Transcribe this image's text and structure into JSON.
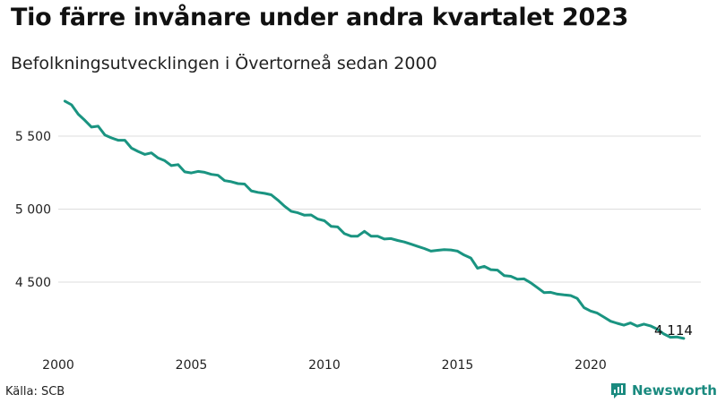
{
  "title": "Tio färre invånare under andra kvartalet 2023",
  "subtitle": "Befolkningsutvecklingen i Övertorneå sedan 2000",
  "source": "Källa: SCB",
  "brand": "Newsworthy",
  "colors": {
    "line": "#1a9481",
    "grid": "#dddddd",
    "brand": "#1a8a7f"
  },
  "chart_data": {
    "type": "line",
    "title": "Tio färre invånare under andra kvartalet 2023",
    "subtitle": "Befolkningsutvecklingen i Övertorneå sedan 2000",
    "xlabel": "",
    "ylabel": "",
    "xlim": [
      2000,
      2024
    ],
    "ylim": [
      4150,
      5800
    ],
    "x_ticks": [
      2000,
      2005,
      2010,
      2015,
      2020
    ],
    "x_tick_labels": [
      "2000",
      "2005",
      "2010",
      "2015",
      "2020"
    ],
    "y_ticks": [
      4500,
      5000,
      5500
    ],
    "y_tick_labels": [
      "4 500",
      "5 000",
      "5 500"
    ],
    "grid": true,
    "end_label": "4 114",
    "series": [
      {
        "values": [
          [
            2000.25,
            5740
          ],
          [
            2000.5,
            5715
          ],
          [
            2000.75,
            5650
          ],
          [
            2001.0,
            5608
          ],
          [
            2001.25,
            5562
          ],
          [
            2001.5,
            5568
          ],
          [
            2001.75,
            5508
          ],
          [
            2002.0,
            5488
          ],
          [
            2002.25,
            5472
          ],
          [
            2002.5,
            5472
          ],
          [
            2002.75,
            5418
          ],
          [
            2003.0,
            5395
          ],
          [
            2003.25,
            5375
          ],
          [
            2003.5,
            5385
          ],
          [
            2003.75,
            5350
          ],
          [
            2004.0,
            5332
          ],
          [
            2004.25,
            5298
          ],
          [
            2004.5,
            5305
          ],
          [
            2004.75,
            5255
          ],
          [
            2005.0,
            5248
          ],
          [
            2005.25,
            5258
          ],
          [
            2005.5,
            5252
          ],
          [
            2005.75,
            5238
          ],
          [
            2006.0,
            5232
          ],
          [
            2006.25,
            5195
          ],
          [
            2006.5,
            5188
          ],
          [
            2006.75,
            5175
          ],
          [
            2007.0,
            5172
          ],
          [
            2007.25,
            5125
          ],
          [
            2007.5,
            5115
          ],
          [
            2007.75,
            5108
          ],
          [
            2008.0,
            5098
          ],
          [
            2008.25,
            5062
          ],
          [
            2008.5,
            5020
          ],
          [
            2008.75,
            4985
          ],
          [
            2009.0,
            4975
          ],
          [
            2009.25,
            4958
          ],
          [
            2009.5,
            4960
          ],
          [
            2009.75,
            4932
          ],
          [
            2010.0,
            4920
          ],
          [
            2010.25,
            4882
          ],
          [
            2010.5,
            4878
          ],
          [
            2010.75,
            4832
          ],
          [
            2011.0,
            4815
          ],
          [
            2011.25,
            4815
          ],
          [
            2011.5,
            4848
          ],
          [
            2011.75,
            4815
          ],
          [
            2012.0,
            4815
          ],
          [
            2012.25,
            4795
          ],
          [
            2012.5,
            4798
          ],
          [
            2012.75,
            4785
          ],
          [
            2013.0,
            4775
          ],
          [
            2013.25,
            4760
          ],
          [
            2013.5,
            4745
          ],
          [
            2013.75,
            4730
          ],
          [
            2014.0,
            4712
          ],
          [
            2014.25,
            4718
          ],
          [
            2014.5,
            4722
          ],
          [
            2014.75,
            4720
          ],
          [
            2015.0,
            4712
          ],
          [
            2015.25,
            4685
          ],
          [
            2015.5,
            4665
          ],
          [
            2015.75,
            4595
          ],
          [
            2016.0,
            4608
          ],
          [
            2016.25,
            4585
          ],
          [
            2016.5,
            4582
          ],
          [
            2016.75,
            4545
          ],
          [
            2017.0,
            4540
          ],
          [
            2017.25,
            4520
          ],
          [
            2017.5,
            4522
          ],
          [
            2017.75,
            4495
          ],
          [
            2018.0,
            4462
          ],
          [
            2018.25,
            4428
          ],
          [
            2018.5,
            4430
          ],
          [
            2018.75,
            4418
          ],
          [
            2019.0,
            4412
          ],
          [
            2019.25,
            4408
          ],
          [
            2019.5,
            4388
          ],
          [
            2019.75,
            4325
          ],
          [
            2020.0,
            4302
          ],
          [
            2020.25,
            4288
          ],
          [
            2020.5,
            4260
          ],
          [
            2020.75,
            4232
          ],
          [
            2021.0,
            4218
          ],
          [
            2021.25,
            4205
          ],
          [
            2021.5,
            4220
          ],
          [
            2021.75,
            4198
          ],
          [
            2022.0,
            4212
          ],
          [
            2022.25,
            4200
          ],
          [
            2022.5,
            4178
          ],
          [
            2022.75,
            4145
          ],
          [
            2023.0,
            4122
          ],
          [
            2023.25,
            4124
          ],
          [
            2023.5,
            4114
          ]
        ]
      }
    ]
  }
}
